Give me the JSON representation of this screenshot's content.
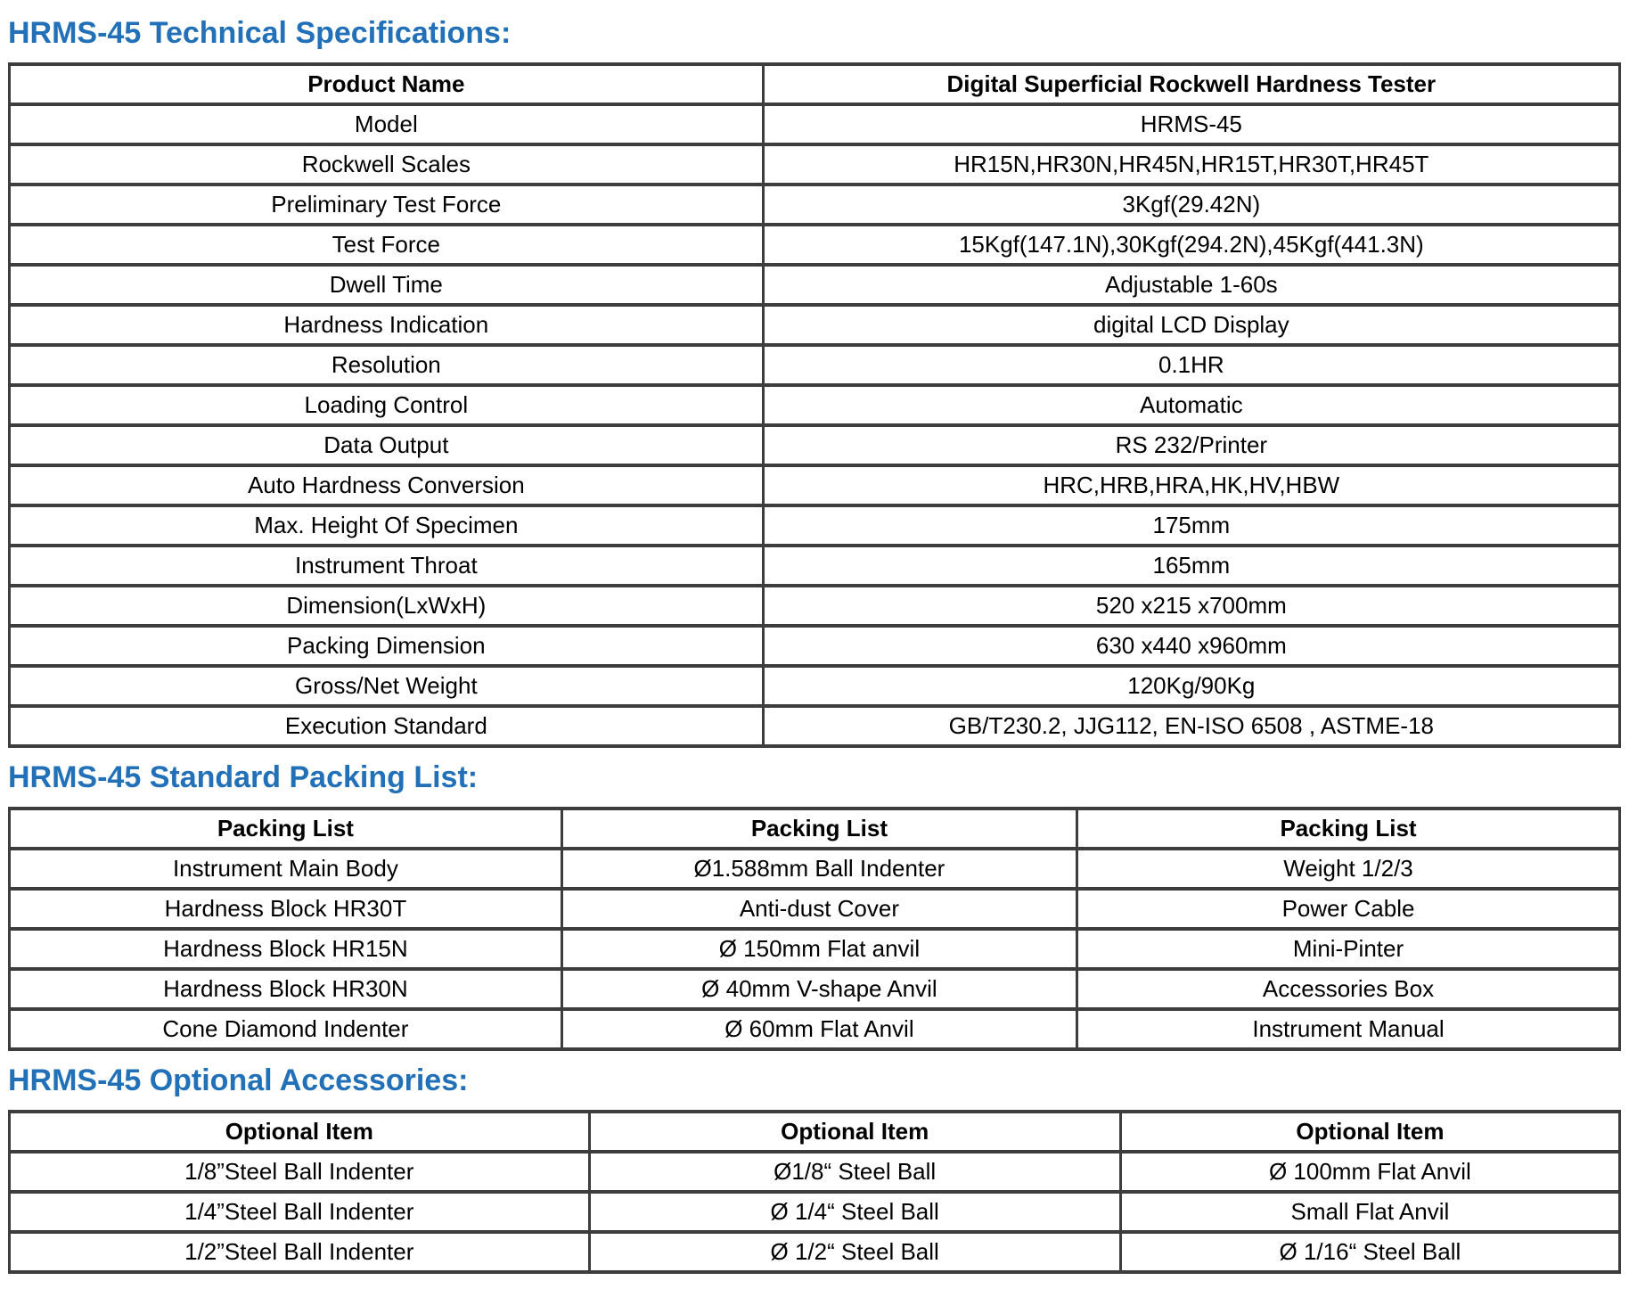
{
  "headings": {
    "specs": "HRMS-45 Technical Specifications:",
    "packing": "HRMS-45 Standard Packing List:",
    "optional": "HRMS-45 Optional Accessories:"
  },
  "colors": {
    "heading_blue": "#2170b8",
    "table_border": "#3d3d3d",
    "text": "#000000",
    "background": "#ffffff"
  },
  "spec_table": {
    "header": {
      "name": "Product Name",
      "value": "Digital Superficial Rockwell Hardness Tester"
    },
    "rows": [
      {
        "label": "Model",
        "value": "HRMS-45"
      },
      {
        "label": "Rockwell Scales",
        "value": "HR15N,HR30N,HR45N,HR15T,HR30T,HR45T"
      },
      {
        "label": "Preliminary Test Force",
        "value": "3Kgf(29.42N)"
      },
      {
        "label": "Test Force",
        "value": "15Kgf(147.1N),30Kgf(294.2N),45Kgf(441.3N)"
      },
      {
        "label": "Dwell Time",
        "value": "Adjustable 1-60s"
      },
      {
        "label": "Hardness Indication",
        "value": "digital LCD Display"
      },
      {
        "label": "Resolution",
        "value": "0.1HR"
      },
      {
        "label": "Loading Control",
        "value": "Automatic"
      },
      {
        "label": "Data Output",
        "value": "RS 232/Printer"
      },
      {
        "label": "Auto Hardness Conversion",
        "value": "HRC,HRB,HRA,HK,HV,HBW"
      },
      {
        "label": "Max. Height Of Specimen",
        "value": "175mm"
      },
      {
        "label": "Instrument Throat",
        "value": "165mm"
      },
      {
        "label": "Dimension(LxWxH)",
        "value": "520 x215 x700mm"
      },
      {
        "label": "Packing Dimension",
        "value": "630 x440 x960mm"
      },
      {
        "label": "Gross/Net Weight",
        "value": "120Kg/90Kg"
      },
      {
        "label": "Execution Standard",
        "value": "GB/T230.2, JJG112, EN-ISO 6508 , ASTME-18"
      }
    ]
  },
  "packing_table": {
    "headers": [
      "Packing List",
      "Packing List",
      "Packing List"
    ],
    "rows": [
      [
        "Instrument Main Body",
        "Ø1.588mm Ball Indenter",
        "Weight 1/2/3"
      ],
      [
        "Hardness Block HR30T",
        "Anti-dust Cover",
        "Power Cable"
      ],
      [
        "Hardness Block HR15N",
        "Ø 150mm Flat anvil",
        "Mini-Pinter"
      ],
      [
        "Hardness Block HR30N",
        "Ø 40mm V-shape Anvil",
        "Accessories Box"
      ],
      [
        "Cone Diamond Indenter",
        "Ø 60mm Flat Anvil",
        "Instrument Manual"
      ]
    ]
  },
  "optional_table": {
    "headers": [
      "Optional Item",
      "Optional Item",
      "Optional Item"
    ],
    "rows": [
      [
        "1/8”Steel Ball Indenter",
        "Ø1/8“ Steel Ball",
        "Ø 100mm Flat Anvil"
      ],
      [
        "1/4”Steel Ball Indenter",
        "Ø 1/4“ Steel Ball",
        "Small Flat Anvil"
      ],
      [
        "1/2”Steel Ball Indenter",
        "Ø 1/2“ Steel Ball",
        "Ø 1/16“ Steel Ball"
      ]
    ]
  }
}
